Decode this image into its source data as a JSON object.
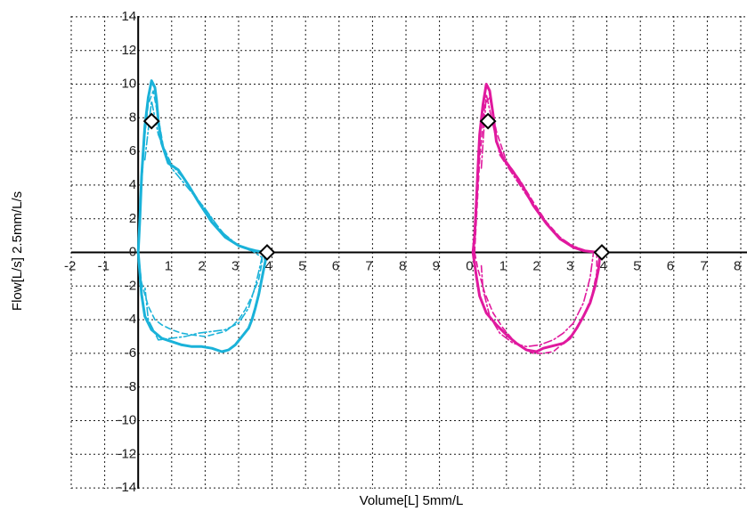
{
  "chart_data": {
    "type": "line",
    "xlabel": "Volume[L] 5mm/L",
    "ylabel": "Flow[L/s] 2.5mm/L/s",
    "grid": true,
    "ylim": [
      -14,
      14
    ],
    "y_ticks": [
      "14",
      "12",
      "10",
      "8",
      "6",
      "4",
      "2",
      "0",
      "-2",
      "-4",
      "-6",
      "-8",
      "-10",
      "-12",
      "-14"
    ],
    "x_ticks": [
      "-2",
      "-1",
      "0",
      "1",
      "2",
      "3",
      "4",
      "5",
      "6",
      "7",
      "8",
      "9",
      "0",
      "1",
      "2",
      "3",
      "4",
      "5",
      "6",
      "7",
      "8"
    ],
    "panels": [
      {
        "color": "#1ab2d9",
        "xlim": [
          -2,
          9
        ],
        "series": [
          {
            "style": "solid",
            "x": [
              0.0,
              0.05,
              0.1,
              0.2,
              0.3,
              0.4,
              0.5,
              0.55,
              0.6,
              0.7,
              0.9,
              1.2,
              1.5,
              1.8,
              2.2,
              2.6,
              3.0,
              3.3,
              3.5,
              3.65,
              3.75,
              3.8,
              3.7,
              3.6,
              3.5,
              3.4,
              3.3,
              3.1,
              2.9,
              2.7,
              2.5,
              2.2,
              1.9,
              1.6,
              1.3,
              1.0,
              0.7,
              0.4,
              0.2,
              0.1,
              0.0
            ],
            "y": [
              0.0,
              2.0,
              4.5,
              7.5,
              9.2,
              10.2,
              9.8,
              9.0,
              7.8,
              6.5,
              5.3,
              4.9,
              4.0,
              3.0,
              1.8,
              0.9,
              0.4,
              0.2,
              0.1,
              0.05,
              0.0,
              -0.5,
              -1.5,
              -2.5,
              -3.3,
              -4.0,
              -4.5,
              -5.0,
              -5.5,
              -5.8,
              -5.9,
              -5.7,
              -5.6,
              -5.6,
              -5.5,
              -5.3,
              -5.1,
              -4.6,
              -3.8,
              -2.5,
              0.0
            ]
          },
          {
            "style": "dashed",
            "x": [
              0.0,
              0.1,
              0.2,
              0.3,
              0.45,
              0.6,
              0.75,
              1.0,
              1.4,
              1.8,
              2.2,
              2.6,
              3.0,
              3.3,
              3.5,
              3.7,
              3.7,
              3.6,
              3.4,
              3.2,
              3.0,
              2.8,
              2.6,
              2.4,
              2.2,
              2.0,
              1.6,
              1.3,
              1.0,
              0.7,
              0.5,
              0.3,
              0.1,
              0.0
            ],
            "y": [
              0.0,
              4.0,
              7.0,
              8.8,
              9.6,
              8.0,
              6.3,
              5.2,
              4.3,
              3.1,
              2.0,
              1.0,
              0.4,
              0.15,
              0.05,
              0.0,
              -0.6,
              -1.6,
              -2.6,
              -3.4,
              -4.0,
              -4.4,
              -4.7,
              -4.8,
              -4.9,
              -5.0,
              -4.9,
              -4.8,
              -4.6,
              -4.3,
              -4.0,
              -3.2,
              -1.8,
              0.0
            ]
          },
          {
            "style": "dashdot",
            "x": [
              0.2,
              0.4,
              0.6,
              1.0,
              1.5,
              2.0,
              2.5,
              3.0,
              3.4,
              3.7,
              3.5,
              3.3,
              3.0,
              2.6,
              2.2,
              1.8,
              1.4,
              1.0,
              0.6,
              0.3,
              0.2
            ],
            "y": [
              5.5,
              9.0,
              7.0,
              5.0,
              3.8,
              2.6,
              1.2,
              0.4,
              0.1,
              -0.3,
              -2.0,
              -3.3,
              -4.2,
              -4.6,
              -4.7,
              -4.8,
              -5.0,
              -5.1,
              -5.2,
              -4.0,
              -2.0
            ]
          }
        ],
        "markers": [
          {
            "x": 0.4,
            "y": 7.8
          },
          {
            "x": 3.85,
            "y": 0.0
          }
        ]
      },
      {
        "color": "#e0199e",
        "xlim": [
          0,
          8
        ],
        "series": [
          {
            "style": "solid",
            "x": [
              0.0,
              0.05,
              0.1,
              0.15,
              0.2,
              0.3,
              0.4,
              0.5,
              0.6,
              0.7,
              0.9,
              1.2,
              1.5,
              1.8,
              2.2,
              2.6,
              3.0,
              3.3,
              3.6,
              3.8,
              3.75,
              3.65,
              3.5,
              3.3,
              3.1,
              2.9,
              2.7,
              2.5,
              2.3,
              2.1,
              1.9,
              1.6,
              1.3,
              1.0,
              0.7,
              0.4,
              0.2,
              0.1,
              0.0
            ],
            "y": [
              0.0,
              1.0,
              3.0,
              5.0,
              7.0,
              8.8,
              10.0,
              9.6,
              8.2,
              6.6,
              5.6,
              4.8,
              3.9,
              2.8,
              1.7,
              0.8,
              0.3,
              0.1,
              0.03,
              0.0,
              -1.0,
              -2.0,
              -3.0,
              -3.8,
              -4.5,
              -5.1,
              -5.4,
              -5.5,
              -5.6,
              -5.7,
              -5.9,
              -5.8,
              -5.4,
              -4.9,
              -4.3,
              -3.6,
              -2.6,
              -1.4,
              0.0
            ]
          },
          {
            "style": "dashed",
            "x": [
              0.05,
              0.2,
              0.35,
              0.5,
              0.7,
              1.0,
              1.4,
              1.8,
              2.2,
              2.6,
              3.0,
              3.4,
              3.7,
              3.7,
              3.55,
              3.3,
              3.0,
              2.7,
              2.4,
              2.1,
              1.8,
              1.5,
              1.2,
              0.9,
              0.6,
              0.35,
              0.15,
              0.05
            ],
            "y": [
              0.0,
              5.5,
              8.8,
              9.2,
              7.2,
              5.4,
              4.3,
              3.0,
              1.8,
              0.9,
              0.35,
              0.1,
              0.0,
              -1.2,
              -2.6,
              -3.8,
              -4.8,
              -5.4,
              -5.9,
              -6.0,
              -6.0,
              -5.7,
              -5.2,
              -4.5,
              -3.6,
              -2.4,
              -1.0,
              0.0
            ]
          },
          {
            "style": "dashdot",
            "x": [
              0.25,
              0.4,
              0.55,
              0.8,
              1.2,
              1.6,
              2.0,
              2.4,
              2.8,
              3.2,
              3.6,
              3.5,
              3.3,
              3.0,
              2.7,
              2.4,
              2.0,
              1.6,
              1.2,
              0.8,
              0.5,
              0.3,
              0.25
            ],
            "y": [
              5.0,
              9.4,
              8.0,
              5.8,
              4.6,
              3.4,
              2.2,
              1.2,
              0.6,
              0.2,
              0.0,
              -1.5,
              -3.0,
              -4.2,
              -4.8,
              -5.2,
              -5.5,
              -5.6,
              -5.4,
              -4.8,
              -3.8,
              -2.2,
              -0.8
            ]
          }
        ],
        "markers": [
          {
            "x": 0.45,
            "y": 7.8
          },
          {
            "x": 3.85,
            "y": 0.0
          }
        ]
      }
    ]
  }
}
